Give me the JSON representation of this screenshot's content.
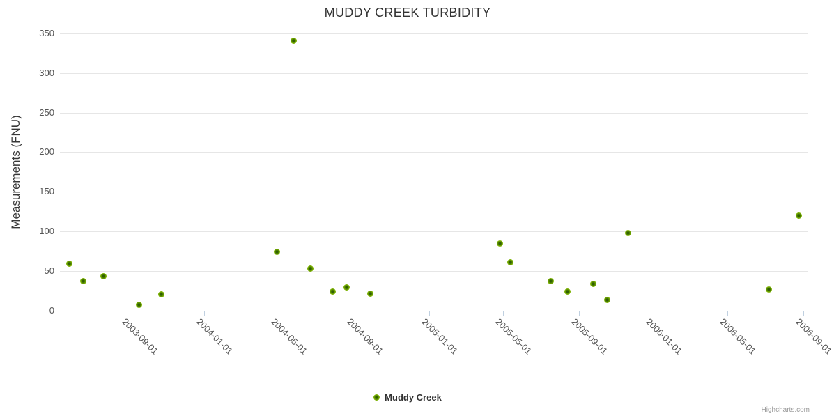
{
  "chart": {
    "title": "MUDDY CREEK TURBIDITY",
    "credits": "Highcharts.com"
  },
  "legend": {
    "items": [
      {
        "label": "Muddy Creek"
      }
    ]
  },
  "chart_data": {
    "type": "scatter",
    "title": "MUDDY CREEK TURBIDITY",
    "xlabel": "",
    "ylabel": "Measurements (FNU)",
    "x_axis_type": "datetime",
    "x_range": [
      "2003-05-11",
      "2006-09-09"
    ],
    "y_range": [
      0,
      350
    ],
    "y_ticks": [
      0,
      50,
      100,
      150,
      200,
      250,
      300,
      350
    ],
    "x_ticks": [
      "2003-09-01",
      "2004-01-01",
      "2004-05-01",
      "2004-09-01",
      "2005-01-01",
      "2005-05-01",
      "2005-09-01",
      "2006-01-01",
      "2006-05-01",
      "2006-09-01"
    ],
    "grid": "horizontal",
    "legend_position": "bottom-center",
    "series": [
      {
        "name": "Muddy Creek",
        "color": "#7fb405",
        "marker_center_color": "#2f6000",
        "points": [
          [
            "2003-05-26",
            59
          ],
          [
            "2003-06-18",
            37
          ],
          [
            "2003-07-21",
            43
          ],
          [
            "2003-09-17",
            7
          ],
          [
            "2003-10-23",
            20
          ],
          [
            "2004-04-28",
            74
          ],
          [
            "2004-05-25",
            341
          ],
          [
            "2004-06-21",
            53
          ],
          [
            "2004-07-28",
            24
          ],
          [
            "2004-08-19",
            29
          ],
          [
            "2004-09-27",
            21
          ],
          [
            "2005-04-26",
            85
          ],
          [
            "2005-05-13",
            61
          ],
          [
            "2005-07-17",
            37
          ],
          [
            "2005-08-13",
            24
          ],
          [
            "2005-09-24",
            34
          ],
          [
            "2005-10-17",
            13
          ],
          [
            "2005-11-20",
            98
          ],
          [
            "2006-07-07",
            27
          ],
          [
            "2006-08-25",
            120
          ]
        ]
      }
    ],
    "colors": {
      "grid_line": "#e6e6e6",
      "axis_line": "#c0d0e0",
      "tick_label": "#545454",
      "title": "#333333",
      "credits": "#999999"
    }
  }
}
